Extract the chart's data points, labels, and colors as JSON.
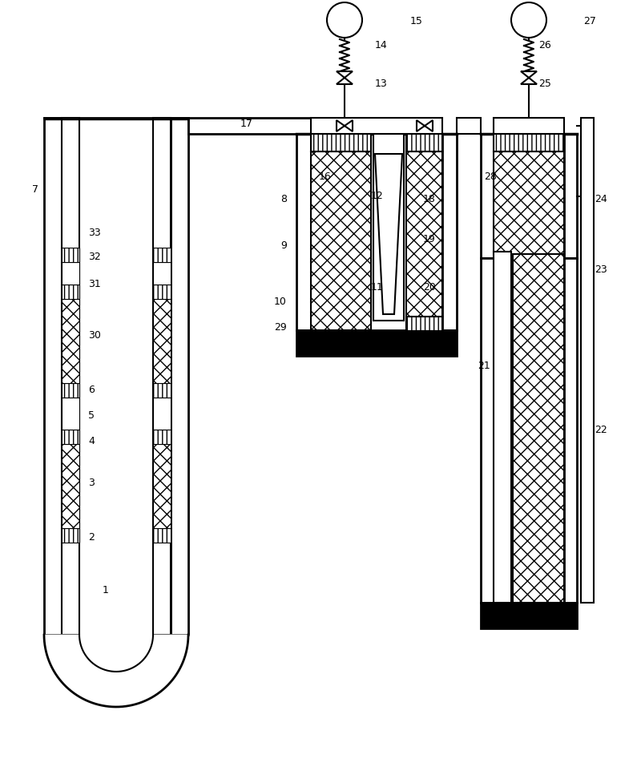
{
  "bg_color": "#ffffff",
  "line_color": "#000000",
  "fig_width": 8.0,
  "fig_height": 9.67
}
